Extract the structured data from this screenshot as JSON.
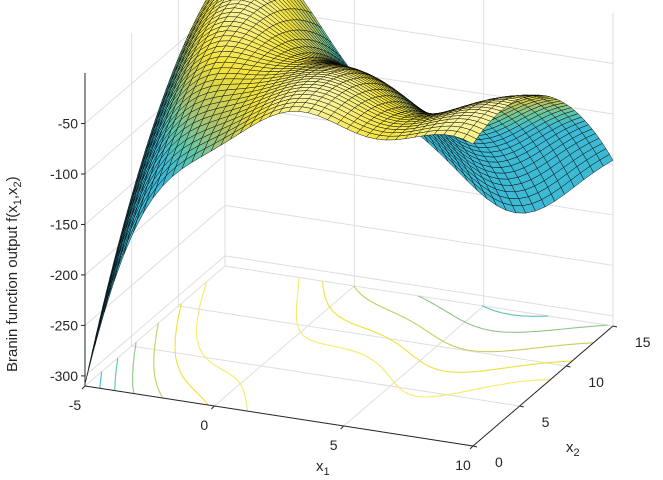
{
  "chart_data": {
    "type": "surface",
    "function": "Branin",
    "zlabel_main": "Branin function output f(x",
    "zlabel_sub1": "1",
    "zlabel_sep": ",x",
    "zlabel_sub2": "2",
    "zlabel_end": ")",
    "xlabel_main": "x",
    "xlabel_sub": "1",
    "ylabel_main": "x",
    "ylabel_sub": "2",
    "x_range": [
      -5,
      10
    ],
    "y_range": [
      0,
      15
    ],
    "z_range": [
      -310,
      0
    ],
    "x_ticks": [
      -5,
      0,
      5,
      10
    ],
    "y_ticks": [
      0,
      5,
      10,
      15
    ],
    "z_ticks": [
      -300,
      -250,
      -200,
      -150,
      -100,
      -50
    ],
    "x_tick_labels": [
      "-5",
      "0",
      "5",
      "10"
    ],
    "y_tick_labels": [
      "0",
      "5",
      "10",
      "15"
    ],
    "z_tick_labels": [
      "-300",
      "-250",
      "-200",
      "-150",
      "-100",
      "-50"
    ],
    "surface_values": "z = -(x2 - 5.1/(4π²)·x1² + 5/π·x1 - 6)² - 10(1 - 1/(8π))cos(x1) - 10",
    "grid_resolution": [
      40,
      40
    ],
    "colormap": [
      "#3db9d4",
      "#61c6a6",
      "#b3c46a",
      "#f2e23a",
      "#fbf7a8"
    ],
    "contour_levels": [
      -250,
      -200,
      -150,
      -100,
      -60,
      -30
    ],
    "grid": true
  }
}
